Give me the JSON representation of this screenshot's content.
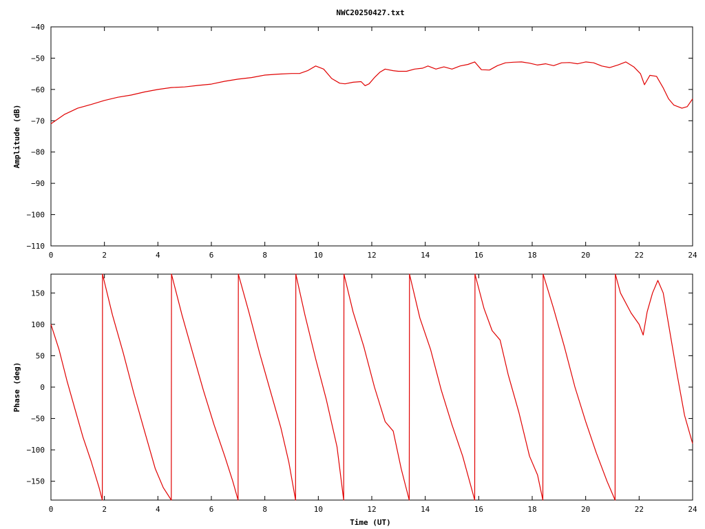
{
  "title": "NWC20250427.txt",
  "colors": {
    "series": "#e00000",
    "frame": "#000000"
  },
  "chart_data": [
    {
      "id": "amplitude",
      "type": "line",
      "xlabel": "",
      "ylabel": "Amplitude (dB)",
      "xlim": [
        0,
        24
      ],
      "ylim": [
        -110,
        -40
      ],
      "xticks": [
        0,
        2,
        4,
        6,
        8,
        10,
        12,
        14,
        16,
        18,
        20,
        22,
        24
      ],
      "yticks": [
        -40,
        -50,
        -60,
        -70,
        -80,
        -90,
        -100,
        -110
      ],
      "ytick_labels": [
        "−40",
        "−50",
        "−60",
        "−70",
        "−80",
        "−90",
        "−100",
        "−110"
      ],
      "grid": false,
      "series": [
        {
          "x": [
            0,
            0.25,
            0.5,
            0.75,
            1,
            1.5,
            2,
            2.5,
            3,
            3.5,
            4,
            4.5,
            5,
            5.5,
            6,
            6.5,
            7,
            7.5,
            8,
            8.5,
            9,
            9.3,
            9.6,
            9.9,
            10.2,
            10.5,
            10.8,
            11.0,
            11.3,
            11.6,
            11.75,
            11.9,
            12.1,
            12.3,
            12.5,
            12.8,
            13.0,
            13.3,
            13.6,
            13.9,
            14.1,
            14.4,
            14.7,
            15.0,
            15.3,
            15.6,
            15.85,
            16.1,
            16.4,
            16.7,
            17.0,
            17.3,
            17.6,
            17.9,
            18.2,
            18.5,
            18.8,
            19.1,
            19.4,
            19.7,
            20.0,
            20.3,
            20.6,
            20.9,
            21.2,
            21.5,
            21.8,
            22.05,
            22.2,
            22.4,
            22.65,
            22.9,
            23.1,
            23.3,
            23.6,
            23.8,
            24
          ],
          "y": [
            -71,
            -69.5,
            -68,
            -67,
            -66,
            -64.8,
            -63.5,
            -62.5,
            -61.8,
            -60.8,
            -60,
            -59.4,
            -59.2,
            -58.7,
            -58.3,
            -57.4,
            -56.7,
            -56.2,
            -55.4,
            -55.1,
            -54.9,
            -54.9,
            -54,
            -52.5,
            -53.5,
            -56.5,
            -58,
            -58.2,
            -57.7,
            -57.5,
            -58.8,
            -58.2,
            -56.2,
            -54.5,
            -53.5,
            -54,
            -54.2,
            -54.2,
            -53.5,
            -53.2,
            -52.5,
            -53.5,
            -52.8,
            -53.5,
            -52.5,
            -52,
            -51.2,
            -53.7,
            -53.8,
            -52.4,
            -51.5,
            -51.3,
            -51.2,
            -51.6,
            -52.2,
            -51.8,
            -52.4,
            -51.5,
            -51.4,
            -51.8,
            -51.2,
            -51.5,
            -52.5,
            -53,
            -52.2,
            -51.2,
            -52.8,
            -55,
            -58.5,
            -55.5,
            -55.8,
            -59.5,
            -63,
            -65,
            -66,
            -65.5,
            -63
          ]
        }
      ]
    },
    {
      "id": "phase",
      "type": "line",
      "xlabel": "Time (UT)",
      "ylabel": "Phase (deg)",
      "xlim": [
        0,
        24
      ],
      "ylim": [
        -180,
        180
      ],
      "xticks": [
        0,
        2,
        4,
        6,
        8,
        10,
        12,
        14,
        16,
        18,
        20,
        22,
        24
      ],
      "yticks": [
        150,
        100,
        50,
        0,
        -50,
        -100,
        -150
      ],
      "ytick_labels": [
        "150",
        "100",
        "50",
        "0",
        "−50",
        "−100",
        "−150"
      ],
      "grid": false,
      "series": [
        {
          "x": [
            0,
            0.3,
            0.6,
            0.9,
            1.2,
            1.5,
            1.8,
            1.92,
            1.93,
            2.3,
            2.7,
            3.1,
            3.5,
            3.9,
            4.2,
            4.5,
            4.51,
            4.9,
            5.3,
            5.7,
            6.1,
            6.5,
            6.8,
            7.0,
            7.01,
            7.4,
            7.8,
            8.2,
            8.6,
            8.9,
            9.15,
            9.16,
            9.5,
            9.9,
            10.3,
            10.7,
            10.95,
            10.96,
            11.3,
            11.7,
            12.1,
            12.5,
            12.8,
            13.1,
            13.4,
            13.41,
            13.8,
            14.2,
            14.6,
            15.0,
            15.4,
            15.85,
            15.86,
            16.2,
            16.5,
            16.8,
            17.1,
            17.5,
            17.9,
            18.2,
            18.4,
            18.41,
            18.8,
            19.2,
            19.6,
            20.0,
            20.4,
            20.8,
            21.1,
            21.11,
            21.3,
            21.7,
            22.0,
            22.15,
            22.3,
            22.5,
            22.7,
            22.9,
            23.1,
            23.4,
            23.7,
            24
          ],
          "y": [
            100,
            60,
            10,
            -35,
            -80,
            -118,
            -160,
            -180,
            180,
            115,
            55,
            -10,
            -70,
            -130,
            -160,
            -180,
            180,
            115,
            55,
            -5,
            -60,
            -110,
            -150,
            -180,
            180,
            120,
            55,
            -5,
            -65,
            -120,
            -180,
            180,
            115,
            45,
            -20,
            -95,
            -180,
            180,
            120,
            65,
            0,
            -55,
            -70,
            -130,
            -180,
            180,
            110,
            60,
            -5,
            -60,
            -110,
            -180,
            180,
            125,
            90,
            75,
            20,
            -40,
            -110,
            -140,
            -180,
            180,
            125,
            65,
            0,
            -55,
            -105,
            -150,
            -180,
            180,
            150,
            118,
            100,
            83,
            120,
            150,
            170,
            150,
            100,
            25,
            -45,
            -90
          ]
        }
      ]
    }
  ]
}
